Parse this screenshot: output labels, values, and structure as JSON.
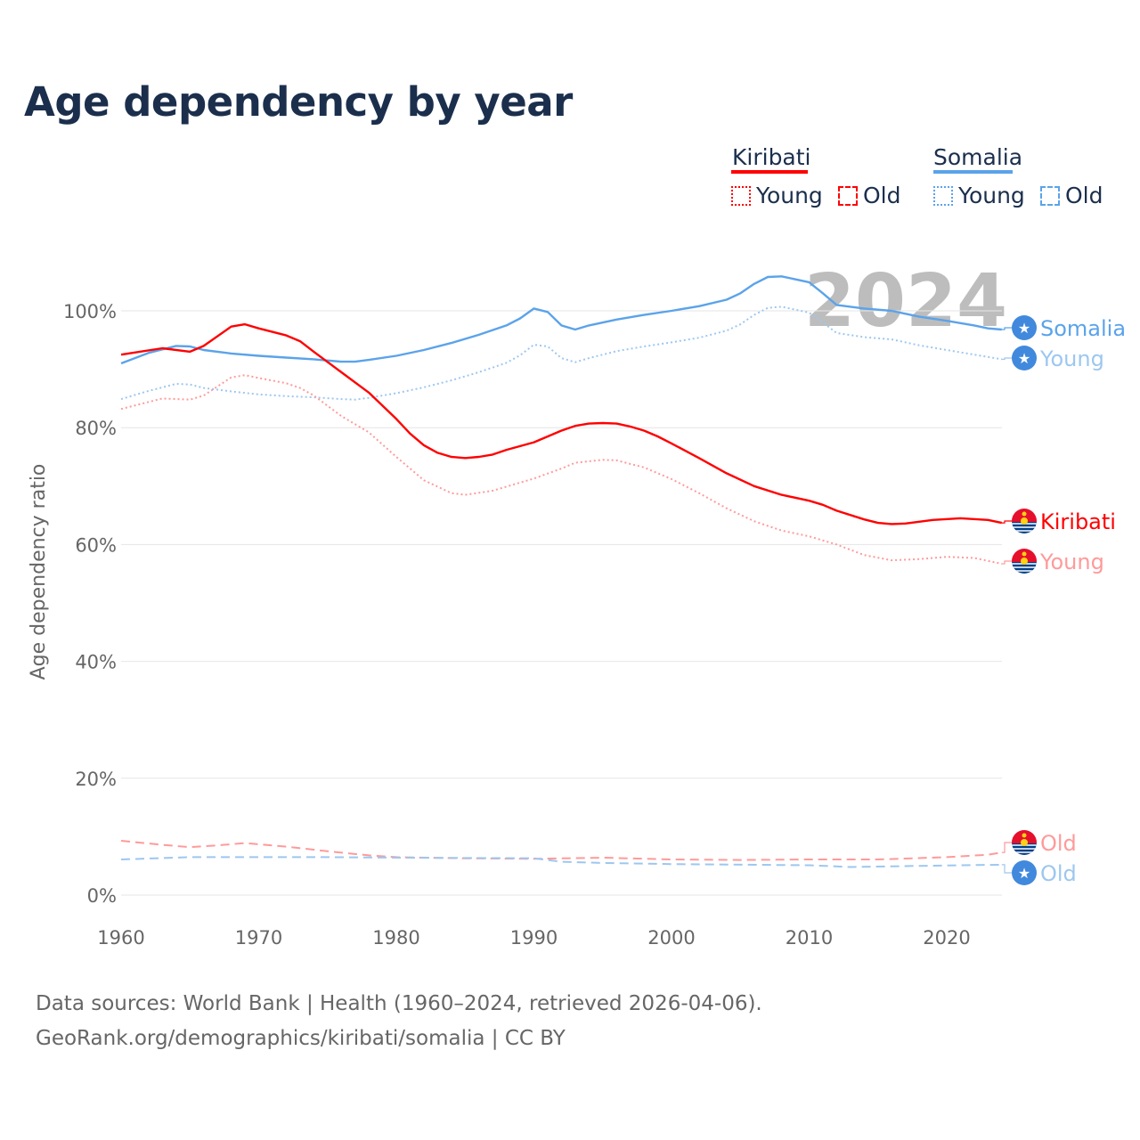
{
  "title": "Age dependency by year",
  "legend": {
    "kiribati": {
      "name": "Kiribati",
      "young": "Young",
      "old": "Old"
    },
    "somalia": {
      "name": "Somalia",
      "young": "Young",
      "old": "Old"
    }
  },
  "source": {
    "line1": "Data sources: World Bank | Health (1960–2024, retrieved 2026-04-06).",
    "line2": "GeoRank.org/demographics/kiribati/somalia | CC BY"
  },
  "chart_data": {
    "type": "line",
    "title": "Age dependency by year",
    "ylabel": "Age dependency ratio",
    "xlabel": "",
    "year_label": "2024",
    "xlim": [
      1960,
      2024
    ],
    "ylim": [
      0,
      110
    ],
    "xticks": [
      "1960",
      "1970",
      "1980",
      "1990",
      "2000",
      "2010",
      "2020"
    ],
    "yticks": [
      "0%",
      "20%",
      "40%",
      "60%",
      "80%",
      "100%"
    ],
    "grid": true,
    "legend_position": "top-right",
    "colors": {
      "kiribati": "#ff0000",
      "kiribati_light": "#ff9a9a",
      "somalia": "#5ba3ea",
      "somalia_light": "#9dc7f0"
    },
    "series": [
      {
        "name": "Somalia",
        "label": "Somalia",
        "country": "somalia",
        "style": "solid",
        "x": [
          1960,
          1962,
          1964,
          1965,
          1966,
          1968,
          1970,
          1972,
          1974,
          1976,
          1977,
          1978,
          1980,
          1982,
          1984,
          1986,
          1988,
          1989,
          1990,
          1991,
          1992,
          1993,
          1994,
          1996,
          1998,
          2000,
          2002,
          2004,
          2005,
          2006,
          2007,
          2008,
          2010,
          2011,
          2012,
          2014,
          2016,
          2018,
          2020,
          2022,
          2023,
          2024
        ],
        "y": [
          91,
          92.8,
          94,
          93.9,
          93.3,
          92.7,
          92.3,
          92,
          91.7,
          91.3,
          91.3,
          91.6,
          92.3,
          93.3,
          94.5,
          95.9,
          97.5,
          98.7,
          100.4,
          99.8,
          97.5,
          96.8,
          97.5,
          98.5,
          99.3,
          100,
          100.8,
          101.9,
          103,
          104.6,
          105.8,
          105.9,
          104.9,
          103,
          101,
          100.4,
          100,
          99,
          98.3,
          97.5,
          97,
          96.8
        ]
      },
      {
        "name": "Somalia Young",
        "label": "Young",
        "country": "somalia",
        "style": "dotted",
        "x": [
          1960,
          1962,
          1964,
          1965,
          1966,
          1968,
          1970,
          1972,
          1974,
          1976,
          1977,
          1978,
          1980,
          1982,
          1984,
          1986,
          1988,
          1989,
          1990,
          1991,
          1992,
          1993,
          1994,
          1996,
          1998,
          2000,
          2002,
          2004,
          2005,
          2006,
          2007,
          2008,
          2010,
          2011,
          2012,
          2014,
          2016,
          2018,
          2020,
          2022,
          2024
        ],
        "y": [
          84.9,
          86.3,
          87.5,
          87.4,
          86.8,
          86.2,
          85.7,
          85.4,
          85.2,
          84.9,
          84.8,
          85.1,
          85.9,
          86.9,
          88.1,
          89.5,
          91.1,
          92.4,
          94.2,
          93.9,
          91.9,
          91.2,
          91.9,
          93.1,
          93.9,
          94.6,
          95.4,
          96.6,
          97.7,
          99.3,
          100.5,
          100.7,
          99.7,
          98,
          96.2,
          95.5,
          95.1,
          94.1,
          93.3,
          92.5,
          91.7
        ]
      },
      {
        "name": "Kiribati",
        "label": "Kiribati",
        "country": "kiribati",
        "style": "solid",
        "x": [
          1960,
          1963,
          1965,
          1966,
          1968,
          1969,
          1970,
          1972,
          1973,
          1974,
          1976,
          1978,
          1980,
          1981,
          1982,
          1983,
          1984,
          1985,
          1986,
          1987,
          1988,
          1990,
          1992,
          1993,
          1994,
          1995,
          1996,
          1997,
          1998,
          1999,
          2000,
          2002,
          2004,
          2006,
          2008,
          2010,
          2011,
          2012,
          2014,
          2015,
          2016,
          2017,
          2019,
          2021,
          2023,
          2024
        ],
        "y": [
          92.5,
          93.6,
          93,
          94,
          97.3,
          97.7,
          97,
          95.8,
          94.8,
          93,
          89.5,
          86,
          81.5,
          79,
          77,
          75.7,
          75,
          74.8,
          75,
          75.4,
          76.2,
          77.5,
          79.5,
          80.3,
          80.7,
          80.8,
          80.7,
          80.2,
          79.5,
          78.5,
          77.3,
          74.8,
          72.2,
          70,
          68.5,
          67.5,
          66.8,
          65.8,
          64.3,
          63.7,
          63.5,
          63.6,
          64.2,
          64.5,
          64.2,
          63.7
        ]
      },
      {
        "name": "Kiribati Young",
        "label": "Young",
        "country": "kiribati",
        "style": "dotted",
        "x": [
          1960,
          1963,
          1965,
          1966,
          1968,
          1969,
          1970,
          1972,
          1973,
          1974,
          1976,
          1978,
          1980,
          1982,
          1984,
          1985,
          1987,
          1990,
          1992,
          1993,
          1995,
          1996,
          1998,
          2000,
          2002,
          2004,
          2006,
          2008,
          2010,
          2012,
          2014,
          2016,
          2018,
          2020,
          2022,
          2024
        ],
        "y": [
          83.2,
          85,
          84.8,
          85.5,
          88.6,
          89,
          88.5,
          87.6,
          86.8,
          85.5,
          82,
          79.2,
          75,
          71,
          68.8,
          68.5,
          69.2,
          71.3,
          73,
          74,
          74.5,
          74.4,
          73.2,
          71.2,
          68.8,
          66.2,
          64,
          62.4,
          61.4,
          60,
          58.2,
          57.3,
          57.5,
          57.9,
          57.7,
          56.7
        ]
      },
      {
        "name": "Kiribati Old",
        "label": "Old",
        "country": "kiribati",
        "style": "dashed",
        "x": [
          1960,
          1963,
          1965,
          1967,
          1969,
          1972,
          1975,
          1978,
          1980,
          1985,
          1990,
          1995,
          2000,
          2005,
          2010,
          2015,
          2020,
          2023,
          2024
        ],
        "y": [
          9.3,
          8.6,
          8.2,
          8.5,
          8.9,
          8.3,
          7.5,
          6.8,
          6.5,
          6.3,
          6.2,
          6.4,
          6.1,
          6.0,
          6.1,
          6.1,
          6.5,
          6.9,
          7.3
        ]
      },
      {
        "name": "Somalia Old",
        "label": "Old",
        "country": "somalia",
        "style": "dashed",
        "x": [
          1960,
          1965,
          1975,
          1980,
          1990,
          1992,
          1995,
          2000,
          2010,
          2013,
          2018,
          2024
        ],
        "y": [
          6.1,
          6.5,
          6.5,
          6.4,
          6.3,
          5.7,
          5.5,
          5.3,
          5.1,
          4.8,
          5.0,
          5.2
        ]
      }
    ]
  }
}
